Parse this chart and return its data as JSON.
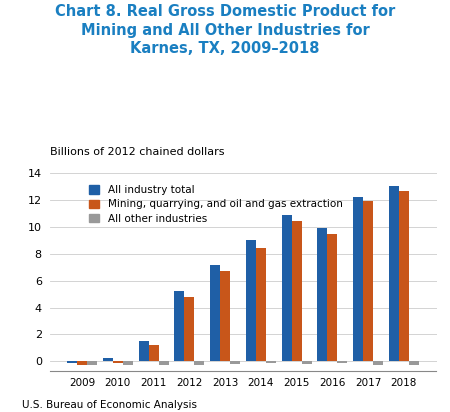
{
  "title": "Chart 8. Real Gross Domestic Product for\nMining and All Other Industries for\nKarnes, TX, 2009–2018",
  "ylabel": "Billions of 2012 chained dollars",
  "footer": "U.S. Bureau of Economic Analysis",
  "years": [
    2009,
    2010,
    2011,
    2012,
    2013,
    2014,
    2015,
    2016,
    2017,
    2018
  ],
  "all_industry": [
    -0.1,
    0.25,
    1.5,
    5.2,
    7.15,
    9.0,
    10.85,
    9.95,
    12.2,
    13.05
  ],
  "mining": [
    -0.25,
    -0.15,
    1.2,
    4.75,
    6.7,
    8.4,
    10.45,
    9.5,
    11.95,
    12.65
  ],
  "other": [
    -0.25,
    -0.25,
    -0.3,
    -0.25,
    -0.2,
    -0.15,
    -0.2,
    -0.15,
    -0.25,
    -0.25
  ],
  "color_blue": "#1f5fa6",
  "color_orange": "#c8561a",
  "color_gray": "#999999",
  "ylim": [
    -0.7,
    14
  ],
  "yticks": [
    0,
    2,
    4,
    6,
    8,
    10,
    12,
    14
  ],
  "legend_labels": [
    "All industry total",
    "Mining, quarrying, and oil and gas extraction",
    "All other industries"
  ],
  "title_color": "#1a7fc1",
  "bg_color": "#ffffff"
}
